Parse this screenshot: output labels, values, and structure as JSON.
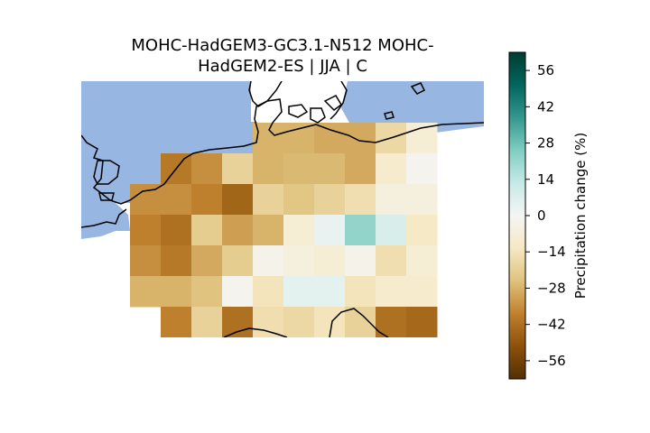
{
  "chart_data": {
    "type": "heatmap",
    "title_lines": [
      "MOHC-HadGEM3-GC3.1-N512 MOHC-",
      "HadGEM2-ES | JJA | C"
    ],
    "colorbar": {
      "label": "Precipitation change (%)",
      "range": [
        -63,
        63
      ],
      "ticks": [
        -56,
        -42,
        -28,
        -14,
        0,
        14,
        28,
        42,
        56
      ],
      "tick_labels": [
        "−56",
        "−42",
        "−28",
        "−14",
        "0",
        "14",
        "28",
        "42",
        "56"
      ],
      "colormap": "BrBG"
    },
    "grid": {
      "rows": 7,
      "cols": 11,
      "values": [
        [
          null,
          null,
          null,
          null,
          null,
          -28,
          -28,
          -30,
          -30,
          -18,
          -8
        ],
        [
          null,
          null,
          -40,
          -35,
          -20,
          -28,
          -27,
          -27,
          -30,
          -10,
          -2
        ],
        [
          null,
          -35,
          -35,
          -38,
          -45,
          -20,
          -24,
          -20,
          -16,
          -6,
          -6
        ],
        [
          null,
          -38,
          -42,
          -22,
          -32,
          -28,
          -8,
          3,
          22,
          8,
          -12
        ],
        [
          null,
          -35,
          -40,
          -30,
          -22,
          -3,
          -6,
          -8,
          -3,
          -16,
          -8
        ],
        [
          null,
          -28,
          -28,
          -25,
          -2,
          -14,
          5,
          5,
          -14,
          -10,
          -10
        ],
        [
          null,
          null,
          -38,
          -20,
          -42,
          -16,
          -18,
          -14,
          -20,
          -42,
          -44
        ]
      ]
    },
    "colors": {
      "ocean": "#97b6e1",
      "coastline": "#000000"
    }
  }
}
